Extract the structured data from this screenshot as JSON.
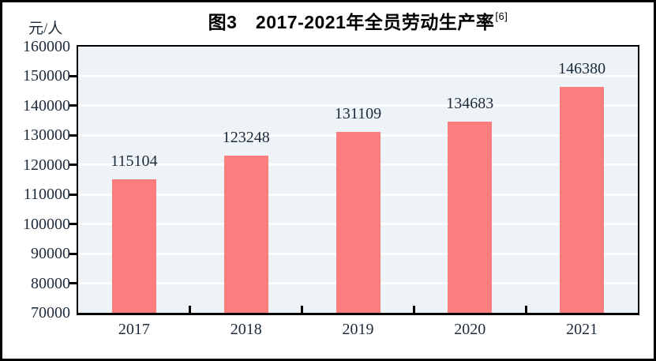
{
  "title": {
    "text": "图3　2017-2021年全员劳动生产率",
    "superscript": "[6]"
  },
  "chart_data": {
    "type": "bar",
    "title": "图3 2017-2021年全员劳动生产率[6]",
    "categories": [
      "2017",
      "2018",
      "2019",
      "2020",
      "2021"
    ],
    "values": [
      115104,
      123248,
      131109,
      134683,
      146380
    ],
    "xlabel": "",
    "ylabel": "元/人",
    "ylim": [
      70000,
      160000
    ],
    "ytick_step": 10000,
    "ytick_labels": [
      "70000",
      "80000",
      "90000",
      "100000",
      "110000",
      "120000",
      "130000",
      "140000",
      "150000",
      "160000"
    ],
    "grid": true,
    "gridline_orientation": "horizontal",
    "legend_position": "none",
    "data_labels": true,
    "colors": {
      "bar": "#FC7D7D",
      "plot_background": "#EDF3F7",
      "gridline": "#FFFFFF",
      "axis_border": "#000000",
      "label_text": "#1C2A3A",
      "title_text": "#000000"
    }
  }
}
